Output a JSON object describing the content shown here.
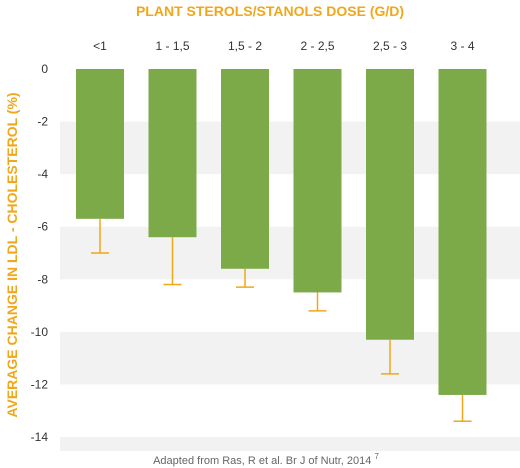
{
  "chart_data": {
    "type": "bar",
    "title": "PLANT STEROLS/STANOLS DOSE (G/D)",
    "ylabel": "AVERAGE CHANGE IN LDL - CHOLESTEROL (%)",
    "xlabel": "",
    "categories": [
      "<1",
      "1 - 1,5",
      "1,5 - 2",
      "2 - 2,5",
      "2,5 - 3",
      "3 - 4"
    ],
    "values": [
      -5.7,
      -6.4,
      -7.6,
      -8.5,
      -10.3,
      -12.4
    ],
    "error_bar_ends": [
      -7.0,
      -8.2,
      -8.3,
      -9.2,
      -11.6,
      -13.4
    ],
    "ylim": [
      -14,
      0
    ],
    "yticks": [
      0,
      -2,
      -4,
      -6,
      -8,
      -10,
      -12,
      -14
    ],
    "ytick_labels": [
      "0",
      "-2",
      "-4",
      "-6",
      "-8",
      "-10",
      "-12",
      "-14"
    ],
    "grid": "alternating horizontal bands",
    "category_labels_position": "top",
    "source_text": "Adapted from Ras, R et al. Br J of Nutr, 2014",
    "source_superscript": "7",
    "colors": {
      "bar": "#7daa49",
      "error_bar": "#f0a71b",
      "title": "#f0a71b",
      "ylabel": "#f0a71b",
      "band": "#f2f2f2",
      "text": "#333333",
      "source": "#666666"
    }
  }
}
